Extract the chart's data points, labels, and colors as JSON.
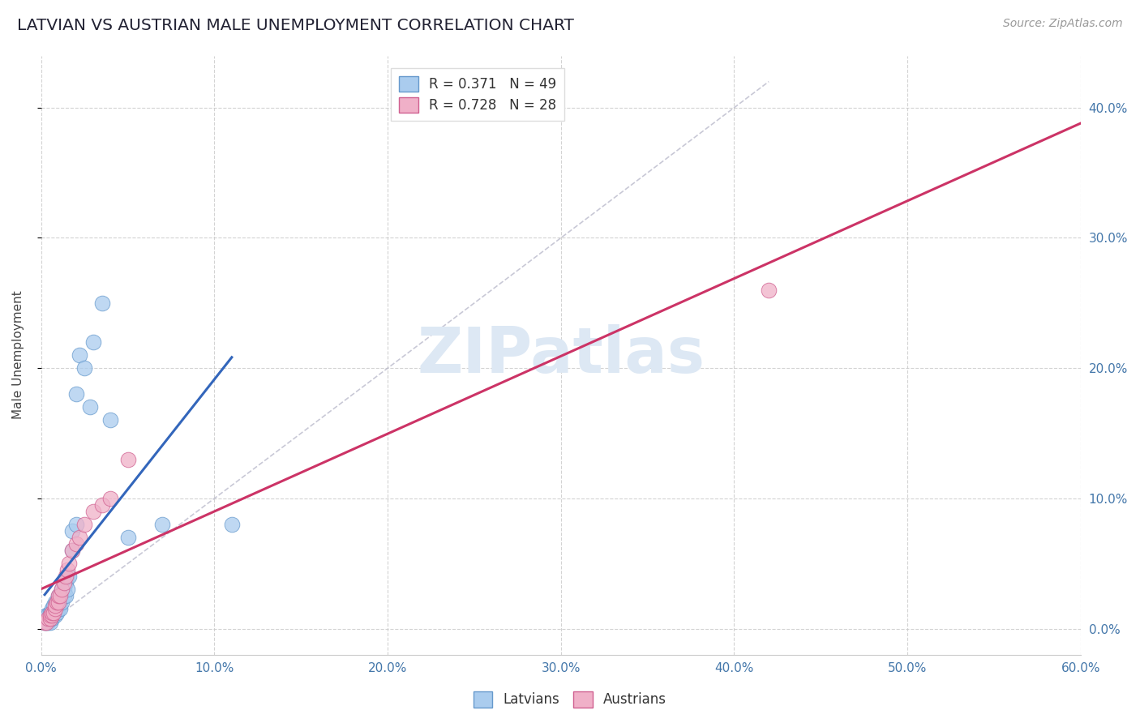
{
  "title": "LATVIAN VS AUSTRIAN MALE UNEMPLOYMENT CORRELATION CHART",
  "source": "Source: ZipAtlas.com",
  "ylabel": "Male Unemployment",
  "xlim": [
    0.0,
    0.6
  ],
  "ylim": [
    -0.02,
    0.44
  ],
  "xticks": [
    0.0,
    0.1,
    0.2,
    0.3,
    0.4,
    0.5,
    0.6
  ],
  "yticks": [
    0.0,
    0.1,
    0.2,
    0.3,
    0.4
  ],
  "grid_color": "#c8c8c8",
  "background_color": "#ffffff",
  "legend_r1": "R = 0.371",
  "legend_n1": "N = 49",
  "legend_r2": "R = 0.728",
  "legend_n2": "N = 28",
  "latvian_fill": "#aaccee",
  "latvian_edge": "#6699cc",
  "austrian_fill": "#f0b0c8",
  "austrian_edge": "#d06090",
  "latvian_line_color": "#3366bb",
  "austrian_line_color": "#cc3366",
  "diag_color": "#bbbbcc",
  "watermark_color": "#dde8f4",
  "latvian_scatter_x": [
    0.002,
    0.003,
    0.003,
    0.004,
    0.004,
    0.004,
    0.005,
    0.005,
    0.005,
    0.005,
    0.006,
    0.006,
    0.006,
    0.007,
    0.007,
    0.007,
    0.008,
    0.008,
    0.008,
    0.009,
    0.009,
    0.009,
    0.01,
    0.01,
    0.01,
    0.011,
    0.011,
    0.012,
    0.012,
    0.013,
    0.013,
    0.014,
    0.014,
    0.015,
    0.015,
    0.016,
    0.018,
    0.018,
    0.02,
    0.02,
    0.022,
    0.025,
    0.028,
    0.03,
    0.035,
    0.04,
    0.05,
    0.07,
    0.11
  ],
  "latvian_scatter_y": [
    0.005,
    0.005,
    0.01,
    0.005,
    0.008,
    0.01,
    0.005,
    0.008,
    0.01,
    0.012,
    0.008,
    0.01,
    0.015,
    0.01,
    0.012,
    0.018,
    0.01,
    0.015,
    0.02,
    0.012,
    0.015,
    0.02,
    0.015,
    0.02,
    0.025,
    0.015,
    0.02,
    0.02,
    0.03,
    0.025,
    0.03,
    0.025,
    0.035,
    0.03,
    0.04,
    0.04,
    0.06,
    0.075,
    0.08,
    0.18,
    0.21,
    0.2,
    0.17,
    0.22,
    0.25,
    0.16,
    0.07,
    0.08,
    0.08
  ],
  "austrian_scatter_x": [
    0.002,
    0.003,
    0.004,
    0.005,
    0.005,
    0.006,
    0.006,
    0.007,
    0.008,
    0.008,
    0.009,
    0.01,
    0.01,
    0.011,
    0.012,
    0.013,
    0.014,
    0.015,
    0.016,
    0.018,
    0.02,
    0.022,
    0.025,
    0.03,
    0.035,
    0.04,
    0.05,
    0.42
  ],
  "austrian_scatter_y": [
    0.005,
    0.005,
    0.008,
    0.008,
    0.01,
    0.01,
    0.012,
    0.012,
    0.015,
    0.018,
    0.02,
    0.02,
    0.025,
    0.025,
    0.03,
    0.035,
    0.04,
    0.045,
    0.05,
    0.06,
    0.065,
    0.07,
    0.08,
    0.09,
    0.095,
    0.1,
    0.13,
    0.26
  ]
}
